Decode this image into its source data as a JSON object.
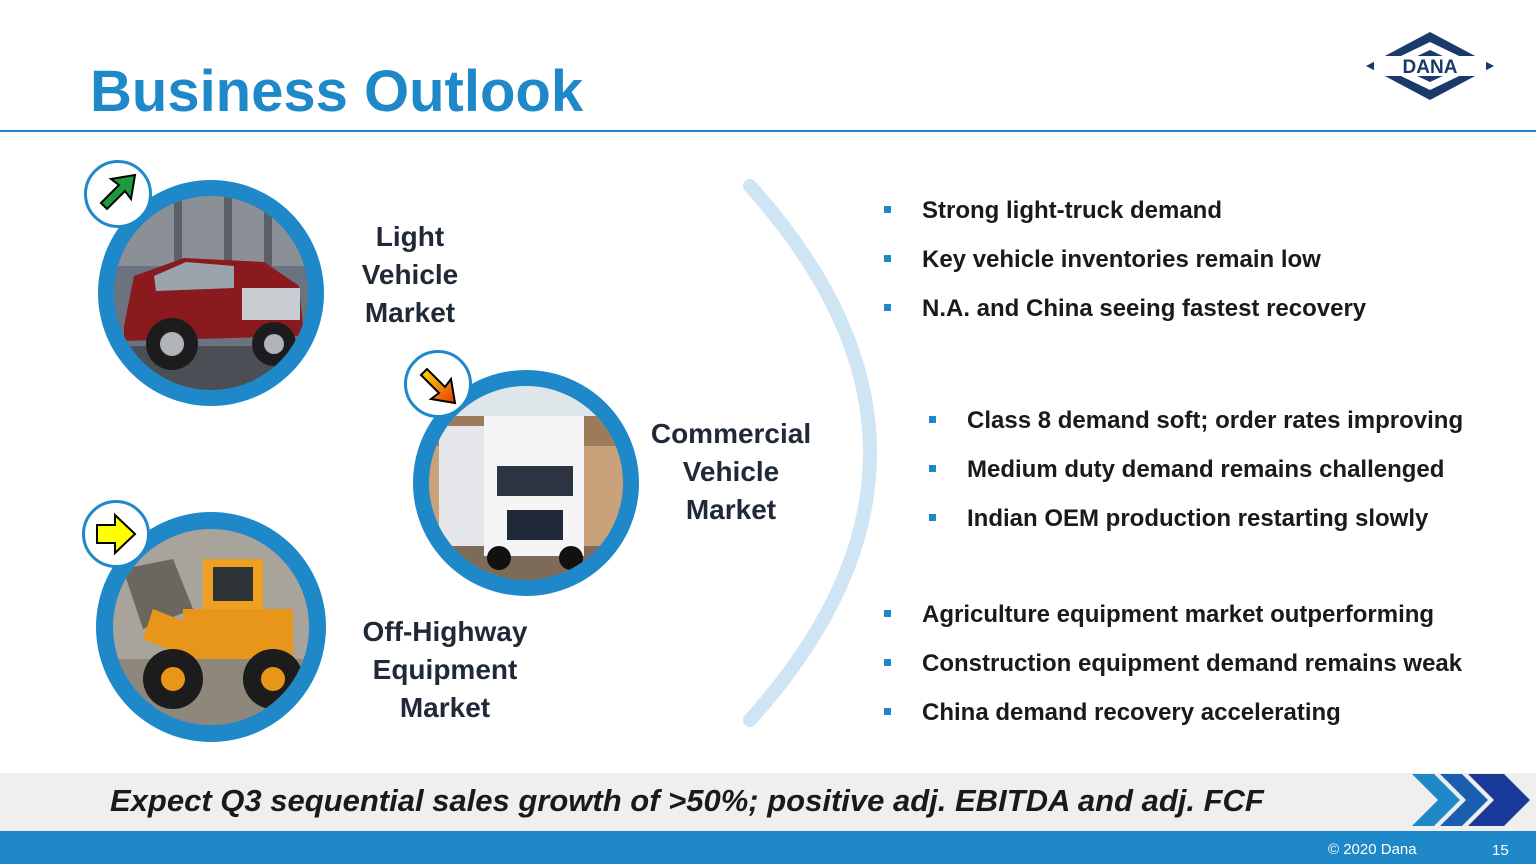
{
  "slide": {
    "title": "Business Outlook",
    "logo_text": "DANA",
    "colors": {
      "accent": "#1e88c9",
      "bracket": "#cfe5f4",
      "up_arrow": "#1e9a3c",
      "diag_arrow": "#f59e0b",
      "right_arrow": "#ffff00"
    }
  },
  "markets": [
    {
      "label_lines": [
        "Light",
        "Vehicle",
        "Market"
      ],
      "trend_icon": "arrow-up-right-green",
      "bullets": [
        "Strong light-truck demand",
        "Key vehicle inventories remain low",
        "N.A. and China seeing fastest recovery"
      ]
    },
    {
      "label_lines": [
        "Commercial",
        "Vehicle",
        "Market"
      ],
      "trend_icon": "arrow-down-right-orange",
      "bullets": [
        "Class 8 demand soft; order rates improving",
        "Medium duty demand remains challenged",
        "Indian OEM production restarting slowly"
      ]
    },
    {
      "label_lines": [
        "Off-Highway",
        "Equipment",
        "Market"
      ],
      "trend_icon": "arrow-right-yellow",
      "bullets": [
        "Agriculture equipment market outperforming",
        "Construction equipment demand remains weak",
        "China demand recovery accelerating"
      ]
    }
  ],
  "banner": {
    "text": "Expect Q3 sequential sales growth of >50%; positive adj. EBITDA and adj. FCF"
  },
  "footer": {
    "copyright": "© 2020 Dana",
    "page_number": "15"
  }
}
